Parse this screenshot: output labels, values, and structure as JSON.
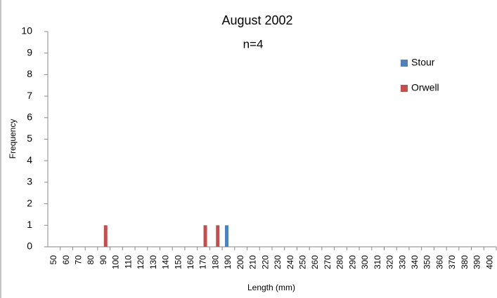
{
  "chart_data": {
    "type": "bar",
    "title": "August 2002",
    "annotation": "n=4",
    "x_label": "Length (mm)",
    "y_label": "Frequency",
    "categories": [
      "50",
      "60",
      "70",
      "80",
      "90",
      "100",
      "110",
      "120",
      "130",
      "140",
      "150",
      "160",
      "170",
      "180",
      "190",
      "200",
      "210",
      "220",
      "230",
      "240",
      "250",
      "260",
      "270",
      "280",
      "290",
      "300",
      "310",
      "320",
      "330",
      "340",
      "350",
      "360",
      "370",
      "380",
      "390",
      "400"
    ],
    "series": [
      {
        "name": "Stour",
        "color": "#4f81bd",
        "values": [
          0,
          0,
          0,
          0,
          0,
          0,
          0,
          0,
          0,
          0,
          0,
          0,
          0,
          0,
          1,
          0,
          0,
          0,
          0,
          0,
          0,
          0,
          0,
          0,
          0,
          0,
          0,
          0,
          0,
          0,
          0,
          0,
          0,
          0,
          0,
          0
        ]
      },
      {
        "name": "Orwell",
        "color": "#c0504d",
        "values": [
          0,
          0,
          0,
          0,
          1,
          0,
          0,
          0,
          0,
          0,
          0,
          0,
          1,
          1,
          0,
          0,
          0,
          0,
          0,
          0,
          0,
          0,
          0,
          0,
          0,
          0,
          0,
          0,
          0,
          0,
          0,
          0,
          0,
          0,
          0,
          0
        ]
      }
    ],
    "ylim": [
      0,
      10
    ],
    "yticks": [
      0,
      1,
      2,
      3,
      4,
      5,
      6,
      7,
      8,
      9,
      10
    ],
    "grid": false,
    "legend": "top-right"
  }
}
